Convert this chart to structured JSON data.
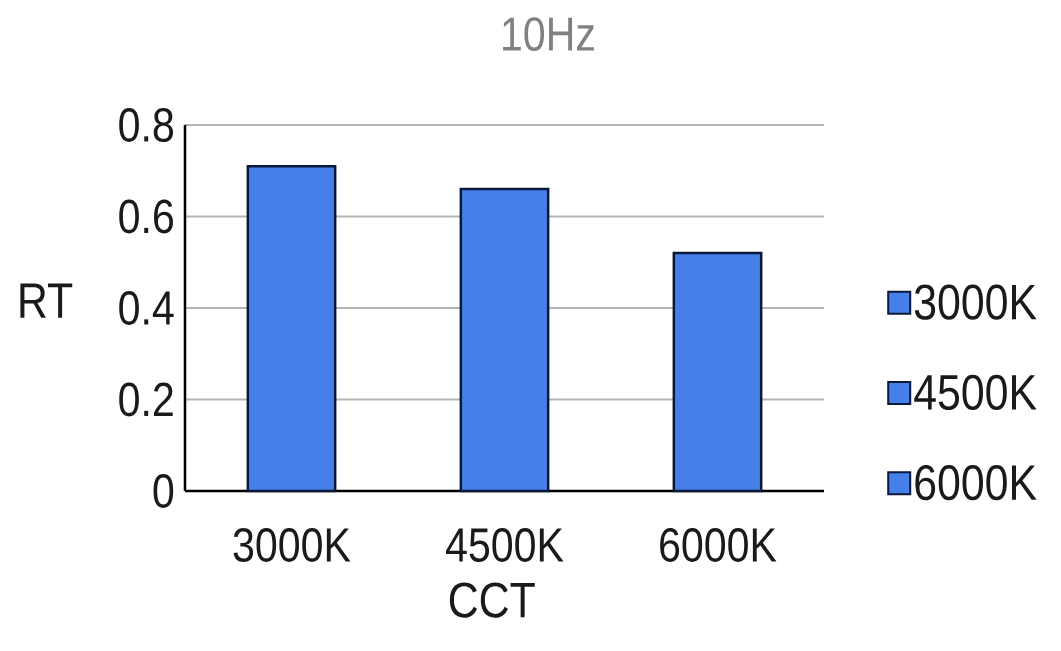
{
  "chart_data": {
    "type": "bar",
    "title": "10Hz",
    "xlabel": "CCT",
    "ylabel": "RT",
    "categories": [
      "3000K",
      "4500K",
      "6000K"
    ],
    "series": [
      {
        "name": "3000K",
        "color": "#4580ea",
        "values": [
          0.71,
          null,
          null
        ]
      },
      {
        "name": "4500K",
        "color": "#4580ea",
        "values": [
          null,
          0.66,
          null
        ]
      },
      {
        "name": "6000K",
        "color": "#4580ea",
        "values": [
          null,
          null,
          0.52
        ]
      }
    ],
    "ylim": [
      0,
      0.8
    ],
    "yticks": [
      0,
      0.2,
      0.4,
      0.6,
      0.8
    ],
    "grid": "y",
    "legend": "right"
  }
}
